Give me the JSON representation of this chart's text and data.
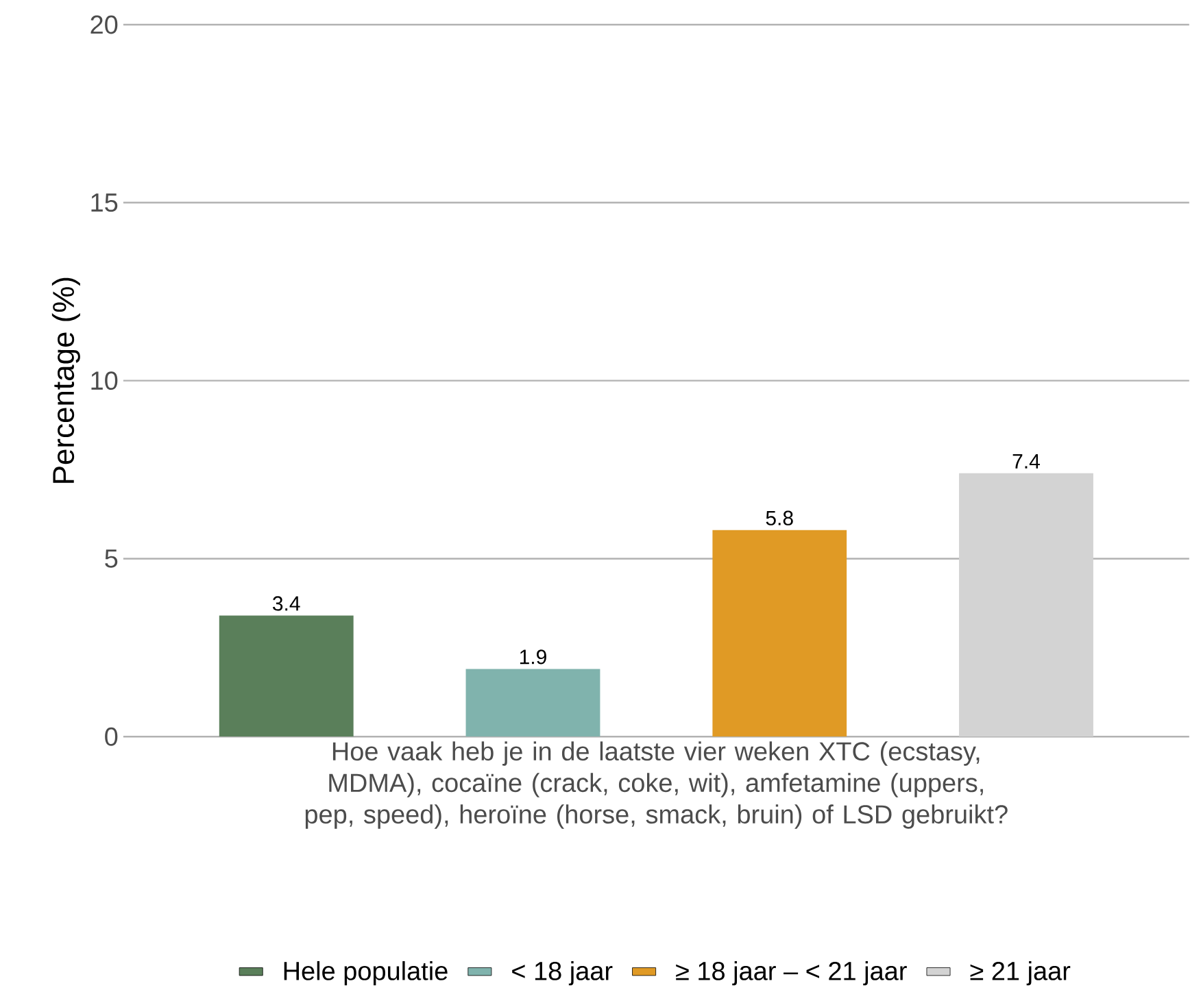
{
  "chart_data": {
    "type": "bar",
    "ylabel": "Percentage (%)",
    "categories": [
      "Hoe vaak heb je in de laatste vier weken XTC (ecstasy, MDMA), cocaïne (crack, coke, wit), amfetamine (uppers, pep, speed), heroïne (horse, smack, bruin) of LSD gebruikt?"
    ],
    "series": [
      {
        "name": "Hele populatie",
        "color": "#5a7f5a",
        "values": [
          3.4
        ]
      },
      {
        "name": "< 18 jaar",
        "color": "#80b3ad",
        "values": [
          1.9
        ]
      },
      {
        "name": "≥ 18 jaar – < 21 jaar",
        "color": "#e09a25",
        "values": [
          5.8
        ]
      },
      {
        "name": "≥ 21 jaar",
        "color": "#d3d3d3",
        "values": [
          7.4
        ]
      }
    ],
    "ylim": [
      0,
      20
    ],
    "yticks": [
      0,
      5,
      10,
      15,
      20
    ],
    "grid": "y",
    "legend": "bottom",
    "data_labels": true
  }
}
